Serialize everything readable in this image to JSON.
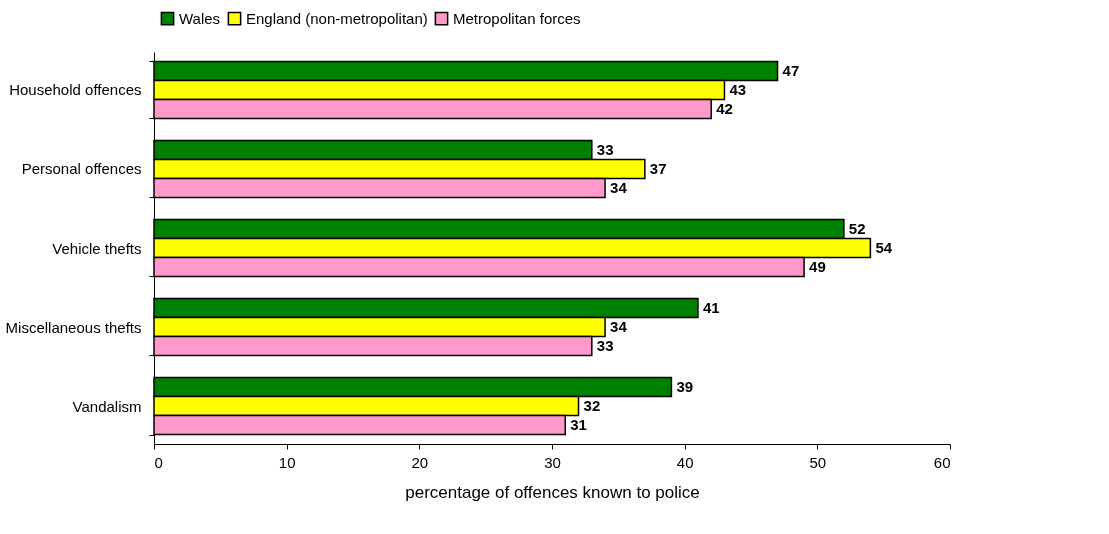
{
  "chart_data": {
    "type": "bar",
    "orientation": "horizontal",
    "xlabel": "percentage of offences known to police",
    "categories": [
      "Household offences",
      "Personal offences",
      "Vehicle thefts",
      "Miscellaneous thefts",
      "Vandalism"
    ],
    "series": [
      {
        "name": "Wales",
        "color": "#008000",
        "values": [
          47,
          33,
          52,
          41,
          39
        ]
      },
      {
        "name": "England (non-metropolitan)",
        "color": "#ffff00",
        "values": [
          43,
          37,
          54,
          34,
          32
        ]
      },
      {
        "name": "Metropolitan forces",
        "color": "#ff99cc",
        "values": [
          42,
          34,
          49,
          33,
          31
        ]
      }
    ],
    "xlim": [
      0,
      60
    ],
    "xticks": [
      0,
      10,
      20,
      30,
      40,
      50,
      60
    ],
    "grid": false,
    "legend": "top",
    "data_labels": true
  }
}
